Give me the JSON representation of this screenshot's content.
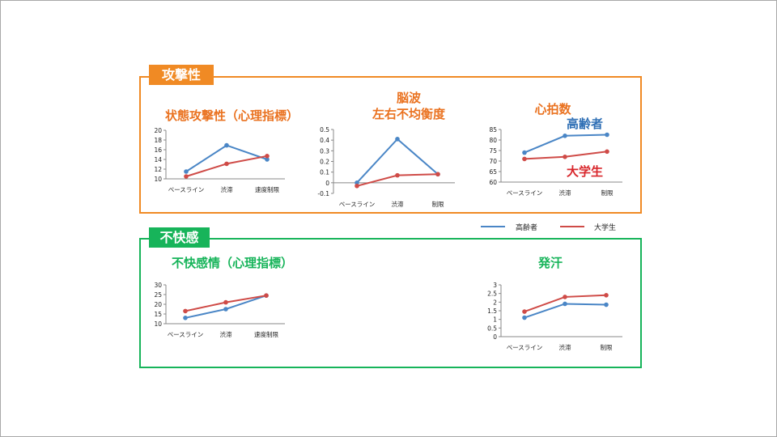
{
  "sections": {
    "aggression": "攻撃性",
    "discomfort": "不快感"
  },
  "titles": {
    "state_aggression": "状態攻撃性（心理指標）",
    "eeg_line1": "脳波",
    "eeg_line2": "左右不均衡度",
    "heart_rate": "心拍数",
    "discomfort_emotion": "不快感情（心理指標）",
    "sweat": "発汗"
  },
  "legend": {
    "elderly": "高齢者",
    "students": "大学生",
    "elderly_color": "#4a86c6",
    "students_color": "#cf4b47"
  },
  "chart_labels": {
    "elderly": "高齢者",
    "students": "大学生"
  },
  "chart_data": [
    {
      "type": "line",
      "categories": [
        "ベースライン",
        "渋滞",
        "速度制限"
      ],
      "ylim": [
        10,
        20
      ],
      "yticks": [
        10,
        12,
        14,
        16,
        18,
        20
      ],
      "series": [
        {
          "name": "高齢者",
          "values": [
            11.5,
            16.9,
            14.0
          ]
        },
        {
          "name": "大学生",
          "values": [
            10.5,
            13.1,
            14.7
          ]
        }
      ]
    },
    {
      "type": "line",
      "categories": [
        "ベースライン",
        "渋滞",
        "制限"
      ],
      "ylim": [
        -0.1,
        0.5
      ],
      "yticks": [
        -0.1,
        0,
        0.1,
        0.2,
        0.3,
        0.4,
        0.5
      ],
      "series": [
        {
          "name": "高齢者",
          "values": [
            0.0,
            0.41,
            0.08
          ]
        },
        {
          "name": "大学生",
          "values": [
            -0.03,
            0.07,
            0.08
          ]
        }
      ]
    },
    {
      "type": "line",
      "categories": [
        "ベースライン",
        "渋滞",
        "制限"
      ],
      "ylim": [
        60,
        85
      ],
      "yticks": [
        60,
        65,
        70,
        75,
        80,
        85
      ],
      "series": [
        {
          "name": "高齢者",
          "values": [
            74.0,
            82.0,
            82.5
          ]
        },
        {
          "name": "大学生",
          "values": [
            71.0,
            72.0,
            74.5
          ]
        }
      ]
    },
    {
      "type": "line",
      "categories": [
        "ベースライン",
        "渋滞",
        "速度制限"
      ],
      "ylim": [
        10,
        30
      ],
      "yticks": [
        10,
        15,
        20,
        25,
        30
      ],
      "series": [
        {
          "name": "高齢者",
          "values": [
            13.0,
            17.5,
            24.5
          ]
        },
        {
          "name": "大学生",
          "values": [
            16.5,
            21.0,
            24.5
          ]
        }
      ]
    },
    {
      "type": "line",
      "categories": [
        "ベースライン",
        "渋滞",
        "制限"
      ],
      "ylim": [
        0,
        3
      ],
      "yticks": [
        0,
        0.5,
        1,
        1.5,
        2,
        2.5,
        3
      ],
      "series": [
        {
          "name": "高齢者",
          "values": [
            1.1,
            1.9,
            1.85
          ]
        },
        {
          "name": "大学生",
          "values": [
            1.45,
            2.3,
            2.4
          ]
        }
      ]
    }
  ]
}
